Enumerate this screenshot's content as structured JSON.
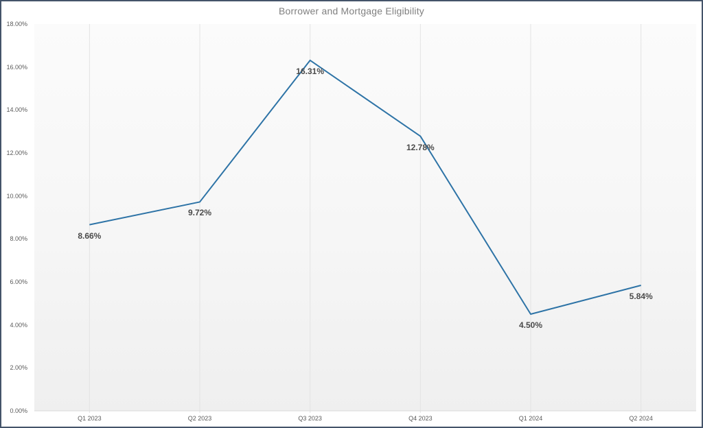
{
  "window": {
    "border_color": "#44546A",
    "background_color": "#ffffff"
  },
  "chart_data": {
    "type": "line",
    "title": "Borrower and Mortgage Eligibility",
    "categories": [
      "Q1 2023",
      "Q2 2023",
      "Q3 2023",
      "Q4 2023",
      "Q1 2024",
      "Q2 2024"
    ],
    "values": [
      8.66,
      9.72,
      16.31,
      12.78,
      4.5,
      5.84
    ],
    "data_labels": [
      "8.66%",
      "9.72%",
      "16.31%",
      "12.78%",
      "4.50%",
      "5.84%"
    ],
    "xlabel": "",
    "ylabel": "",
    "ylim": [
      0,
      18
    ],
    "y_tick_step": 2,
    "y_tick_labels": [
      "0.00%",
      "2.00%",
      "4.00%",
      "6.00%",
      "8.00%",
      "10.00%",
      "12.00%",
      "14.00%",
      "16.00%",
      "18.00%"
    ],
    "grid": "vertical-only",
    "legend": "none",
    "colors": {
      "line": "#2d73a6",
      "gridline": "#e3e3e3",
      "axis_line": "#d9d9d9",
      "title_text": "#7f7f7f",
      "axis_text": "#595959",
      "data_label_text": "#4a4a4a"
    }
  }
}
